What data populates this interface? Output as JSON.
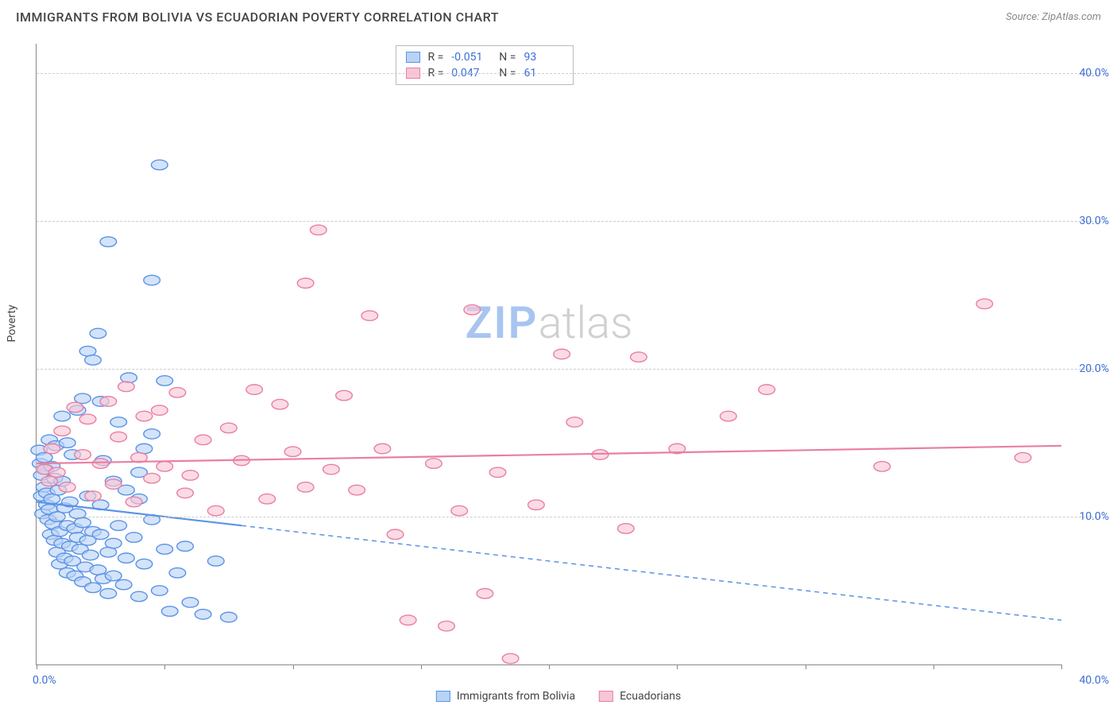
{
  "header": {
    "title": "IMMIGRANTS FROM BOLIVIA VS ECUADORIAN POVERTY CORRELATION CHART",
    "source": "Source: ZipAtlas.com"
  },
  "watermark": {
    "part1": "ZIP",
    "part2": "atlas"
  },
  "chart": {
    "type": "scatter",
    "y_axis_label": "Poverty",
    "background_color": "#ffffff",
    "grid_color": "#cccccc",
    "axis_color": "#888888",
    "tick_label_color": "#3b6fd6",
    "xlim": [
      0,
      40
    ],
    "ylim": [
      0,
      42
    ],
    "x_tick_positions": [
      0,
      5,
      10,
      15,
      20,
      25,
      30,
      35,
      40
    ],
    "x_labels": {
      "start": "0.0%",
      "end": "40.0%"
    },
    "y_gridlines": [
      {
        "value": 10,
        "label": "10.0%"
      },
      {
        "value": 20,
        "label": "20.0%"
      },
      {
        "value": 30,
        "label": "30.0%"
      },
      {
        "value": 40,
        "label": "40.0%"
      }
    ],
    "marker_radius": 8,
    "marker_stroke_width": 1.4,
    "marker_fill_opacity": 0.28,
    "trend_line_width": 2.2,
    "series": [
      {
        "name": "Immigrants from Bolivia",
        "color": "#5a93e6",
        "fill": "#b9d3f5",
        "stats": {
          "R": "-0.051",
          "N": "93"
        },
        "trend": {
          "x1": 0,
          "y1": 11.0,
          "x2": 40,
          "y2": 3.0,
          "solid_until_x": 8
        },
        "points": [
          [
            0.1,
            14.5
          ],
          [
            0.15,
            13.6
          ],
          [
            0.2,
            12.8
          ],
          [
            0.2,
            11.4
          ],
          [
            0.25,
            10.2
          ],
          [
            0.3,
            14.0
          ],
          [
            0.3,
            12.0
          ],
          [
            0.35,
            13.2
          ],
          [
            0.4,
            11.6
          ],
          [
            0.4,
            10.8
          ],
          [
            0.45,
            9.8
          ],
          [
            0.5,
            15.2
          ],
          [
            0.5,
            10.5
          ],
          [
            0.55,
            8.8
          ],
          [
            0.6,
            13.4
          ],
          [
            0.6,
            11.2
          ],
          [
            0.65,
            9.5
          ],
          [
            0.7,
            12.6
          ],
          [
            0.7,
            8.4
          ],
          [
            0.75,
            14.8
          ],
          [
            0.8,
            7.6
          ],
          [
            0.8,
            10.0
          ],
          [
            0.85,
            11.8
          ],
          [
            0.9,
            9.0
          ],
          [
            0.9,
            6.8
          ],
          [
            1.0,
            8.2
          ],
          [
            1.0,
            12.4
          ],
          [
            1.1,
            7.2
          ],
          [
            1.1,
            10.6
          ],
          [
            1.2,
            9.4
          ],
          [
            1.2,
            6.2
          ],
          [
            1.3,
            8.0
          ],
          [
            1.3,
            11.0
          ],
          [
            1.4,
            7.0
          ],
          [
            1.5,
            9.2
          ],
          [
            1.5,
            6.0
          ],
          [
            1.6,
            8.6
          ],
          [
            1.6,
            10.2
          ],
          [
            1.7,
            7.8
          ],
          [
            1.8,
            5.6
          ],
          [
            1.8,
            9.6
          ],
          [
            1.9,
            6.6
          ],
          [
            2.0,
            8.4
          ],
          [
            2.0,
            11.4
          ],
          [
            2.1,
            7.4
          ],
          [
            2.2,
            5.2
          ],
          [
            2.2,
            9.0
          ],
          [
            2.4,
            6.4
          ],
          [
            2.5,
            8.8
          ],
          [
            2.5,
            10.8
          ],
          [
            2.6,
            5.8
          ],
          [
            2.8,
            7.6
          ],
          [
            2.8,
            4.8
          ],
          [
            3.0,
            8.2
          ],
          [
            3.0,
            6.0
          ],
          [
            3.2,
            9.4
          ],
          [
            3.4,
            5.4
          ],
          [
            3.5,
            7.2
          ],
          [
            3.8,
            8.6
          ],
          [
            4.0,
            4.6
          ],
          [
            4.0,
            11.2
          ],
          [
            4.2,
            6.8
          ],
          [
            4.5,
            9.8
          ],
          [
            4.5,
            15.6
          ],
          [
            4.8,
            5.0
          ],
          [
            5.0,
            7.8
          ],
          [
            5.0,
            19.2
          ],
          [
            5.2,
            3.6
          ],
          [
            5.5,
            6.2
          ],
          [
            5.8,
            8.0
          ],
          [
            6.0,
            4.2
          ],
          [
            6.5,
            3.4
          ],
          [
            7.0,
            7.0
          ],
          [
            7.5,
            3.2
          ],
          [
            1.2,
            15.0
          ],
          [
            1.6,
            17.2
          ],
          [
            1.8,
            18.0
          ],
          [
            2.0,
            21.2
          ],
          [
            2.2,
            20.6
          ],
          [
            2.4,
            22.4
          ],
          [
            2.5,
            17.8
          ],
          [
            2.8,
            28.6
          ],
          [
            3.2,
            16.4
          ],
          [
            3.6,
            19.4
          ],
          [
            4.5,
            26.0
          ],
          [
            4.8,
            33.8
          ],
          [
            1.4,
            14.2
          ],
          [
            1.0,
            16.8
          ],
          [
            2.6,
            13.8
          ],
          [
            3.0,
            12.4
          ],
          [
            3.5,
            11.8
          ],
          [
            4.0,
            13.0
          ],
          [
            4.2,
            14.6
          ]
        ]
      },
      {
        "name": "Ecuadorians",
        "color": "#e97fa3",
        "fill": "#f8c6d5",
        "stats": {
          "R": "0.047",
          "N": "61"
        },
        "trend": {
          "x1": 0,
          "y1": 13.6,
          "x2": 40,
          "y2": 14.8,
          "solid_until_x": 40
        },
        "points": [
          [
            0.3,
            13.2
          ],
          [
            0.5,
            12.4
          ],
          [
            0.6,
            14.6
          ],
          [
            0.8,
            13.0
          ],
          [
            1.0,
            15.8
          ],
          [
            1.2,
            12.0
          ],
          [
            1.5,
            17.4
          ],
          [
            1.8,
            14.2
          ],
          [
            2.0,
            16.6
          ],
          [
            2.2,
            11.4
          ],
          [
            2.5,
            13.6
          ],
          [
            2.8,
            17.8
          ],
          [
            3.0,
            12.2
          ],
          [
            3.2,
            15.4
          ],
          [
            3.5,
            18.8
          ],
          [
            3.8,
            11.0
          ],
          [
            4.0,
            14.0
          ],
          [
            4.2,
            16.8
          ],
          [
            4.5,
            12.6
          ],
          [
            4.8,
            17.2
          ],
          [
            5.0,
            13.4
          ],
          [
            5.5,
            18.4
          ],
          [
            5.8,
            11.6
          ],
          [
            6.0,
            12.8
          ],
          [
            6.5,
            15.2
          ],
          [
            7.0,
            10.4
          ],
          [
            7.5,
            16.0
          ],
          [
            8.0,
            13.8
          ],
          [
            8.5,
            18.6
          ],
          [
            9.0,
            11.2
          ],
          [
            9.5,
            17.6
          ],
          [
            10.0,
            14.4
          ],
          [
            10.5,
            25.8
          ],
          [
            10.5,
            12.0
          ],
          [
            11.0,
            29.4
          ],
          [
            11.5,
            13.2
          ],
          [
            12.0,
            18.2
          ],
          [
            12.5,
            11.8
          ],
          [
            13.0,
            23.6
          ],
          [
            13.5,
            14.6
          ],
          [
            14.0,
            8.8
          ],
          [
            14.5,
            3.0
          ],
          [
            15.5,
            13.6
          ],
          [
            16.0,
            2.6
          ],
          [
            16.5,
            10.4
          ],
          [
            17.0,
            24.0
          ],
          [
            17.5,
            4.8
          ],
          [
            18.0,
            13.0
          ],
          [
            18.5,
            0.4
          ],
          [
            19.5,
            10.8
          ],
          [
            20.5,
            21.0
          ],
          [
            21.0,
            16.4
          ],
          [
            22.0,
            14.2
          ],
          [
            23.0,
            9.2
          ],
          [
            23.5,
            20.8
          ],
          [
            25.0,
            14.6
          ],
          [
            27.0,
            16.8
          ],
          [
            28.5,
            18.6
          ],
          [
            33.0,
            13.4
          ],
          [
            37.0,
            24.4
          ],
          [
            38.5,
            14.0
          ]
        ]
      }
    ]
  },
  "legend": {
    "items": [
      {
        "label": "Immigrants from Bolivia",
        "fill": "#b9d3f5",
        "stroke": "#5a93e6"
      },
      {
        "label": "Ecuadorians",
        "fill": "#f8c6d5",
        "stroke": "#e97fa3"
      }
    ]
  }
}
